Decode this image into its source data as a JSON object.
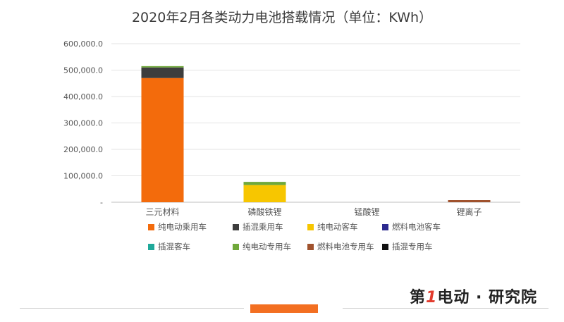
{
  "chart_data": {
    "type": "bar",
    "stacked": true,
    "title": "2020年2月各类动力电池搭载情况（单位：KWh）",
    "categories": [
      "三元材料",
      "磷酸铁锂",
      "锰酸锂",
      "锂离子"
    ],
    "ylim": [
      0,
      600000
    ],
    "yticks": [
      0,
      100000,
      200000,
      300000,
      400000,
      500000,
      600000
    ],
    "ytick_labels": [
      "-",
      "100,000.0",
      "200,000.0",
      "300,000.0",
      "400,000.0",
      "500,000.0",
      "600,000.0"
    ],
    "grid": true,
    "legend_position": "bottom",
    "series": [
      {
        "name": "纯电动乘用车",
        "color": "#f36b0c",
        "values": [
          470000,
          0,
          0,
          0
        ]
      },
      {
        "name": "插混乘用车",
        "color": "#3d3d3d",
        "values": [
          40000,
          0,
          0,
          0
        ]
      },
      {
        "name": "纯电动客车",
        "color": "#f7c600",
        "values": [
          0,
          65000,
          0,
          0
        ]
      },
      {
        "name": "燃料电池客车",
        "color": "#2c2a8f",
        "values": [
          0,
          0,
          0,
          0
        ]
      },
      {
        "name": "插混客车",
        "color": "#1fa99a",
        "values": [
          0,
          0,
          0,
          0
        ]
      },
      {
        "name": "纯电动专用车",
        "color": "#6fa83a",
        "values": [
          5000,
          12000,
          0,
          0
        ]
      },
      {
        "name": "燃料电池专用车",
        "color": "#a0522d",
        "values": [
          0,
          0,
          0,
          8000
        ]
      },
      {
        "name": "插混专用车",
        "color": "#111111",
        "values": [
          0,
          0,
          0,
          0
        ]
      }
    ]
  },
  "branding": {
    "text_prefix": "第",
    "text_one": "1",
    "text_suffix": "电动 · 研究院"
  }
}
